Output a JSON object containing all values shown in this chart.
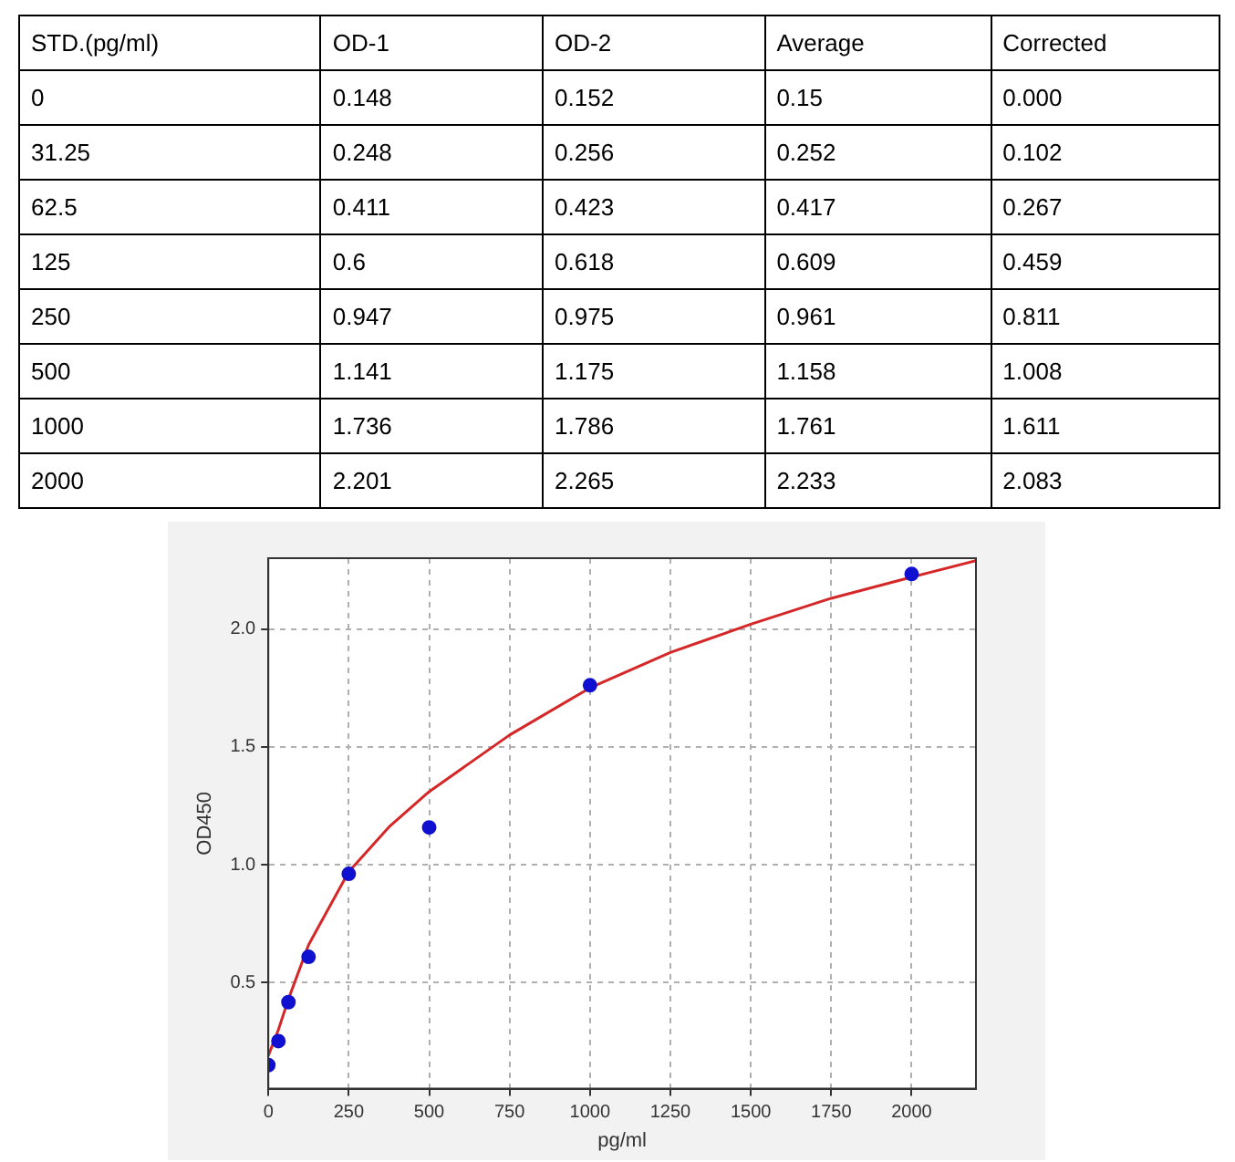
{
  "chart_data": {
    "type": "scatter",
    "xlabel": "pg/ml",
    "ylabel": "OD450",
    "x": [
      0,
      31.25,
      62.5,
      125,
      250,
      500,
      1000,
      2000
    ],
    "series": [
      {
        "color": "#1010d0",
        "values": [
          0.15,
          0.252,
          0.417,
          0.609,
          0.961,
          1.158,
          1.761,
          2.233
        ]
      },
      {
        "type": "line",
        "color": "#d62728",
        "marker": "none",
        "x": [
          0,
          31.25,
          62.5,
          125,
          250,
          375,
          500,
          750,
          1000,
          1250,
          1500,
          1750,
          2000,
          2200
        ],
        "values": [
          0.19,
          0.3,
          0.43,
          0.66,
          0.97,
          1.16,
          1.31,
          1.55,
          1.75,
          1.9,
          2.02,
          2.13,
          2.22,
          2.29
        ]
      }
    ],
    "xlim": [
      0,
      2200
    ],
    "xticks": [
      0,
      250,
      500,
      750,
      1000,
      1250,
      1500,
      1750,
      2000
    ],
    "ylim": [
      0.05,
      2.3
    ],
    "yticks": [
      {
        "value": 0.5,
        "label": "0.5"
      },
      {
        "value": 1,
        "label": "1.0"
      },
      {
        "value": 1.5,
        "label": "1.5"
      },
      {
        "value": 2,
        "label": "2.0"
      }
    ],
    "grid": true,
    "marker": "circle",
    "annotations": [
      "STD.(pg/ml)",
      "OD-1",
      "OD-2",
      "Average",
      "Corrected",
      "0",
      "0.148",
      "0.152",
      "0.15",
      "0.000",
      "31.25",
      "0.248",
      "0.256",
      "0.252",
      "0.102",
      "62.5",
      "0.411",
      "0.423",
      "0.417",
      "0.267",
      "125",
      "0.6",
      "0.618",
      "0.609",
      "0.459",
      "250",
      "0.947",
      "0.975",
      "0.961",
      "0.811",
      "500",
      "1.141",
      "1.175",
      "1.158",
      "1.008",
      "1000",
      "1.736",
      "1.786",
      "1.761",
      "1.611",
      "2000",
      "2.201",
      "2.265",
      "2.233",
      "2.083"
    ]
  }
}
